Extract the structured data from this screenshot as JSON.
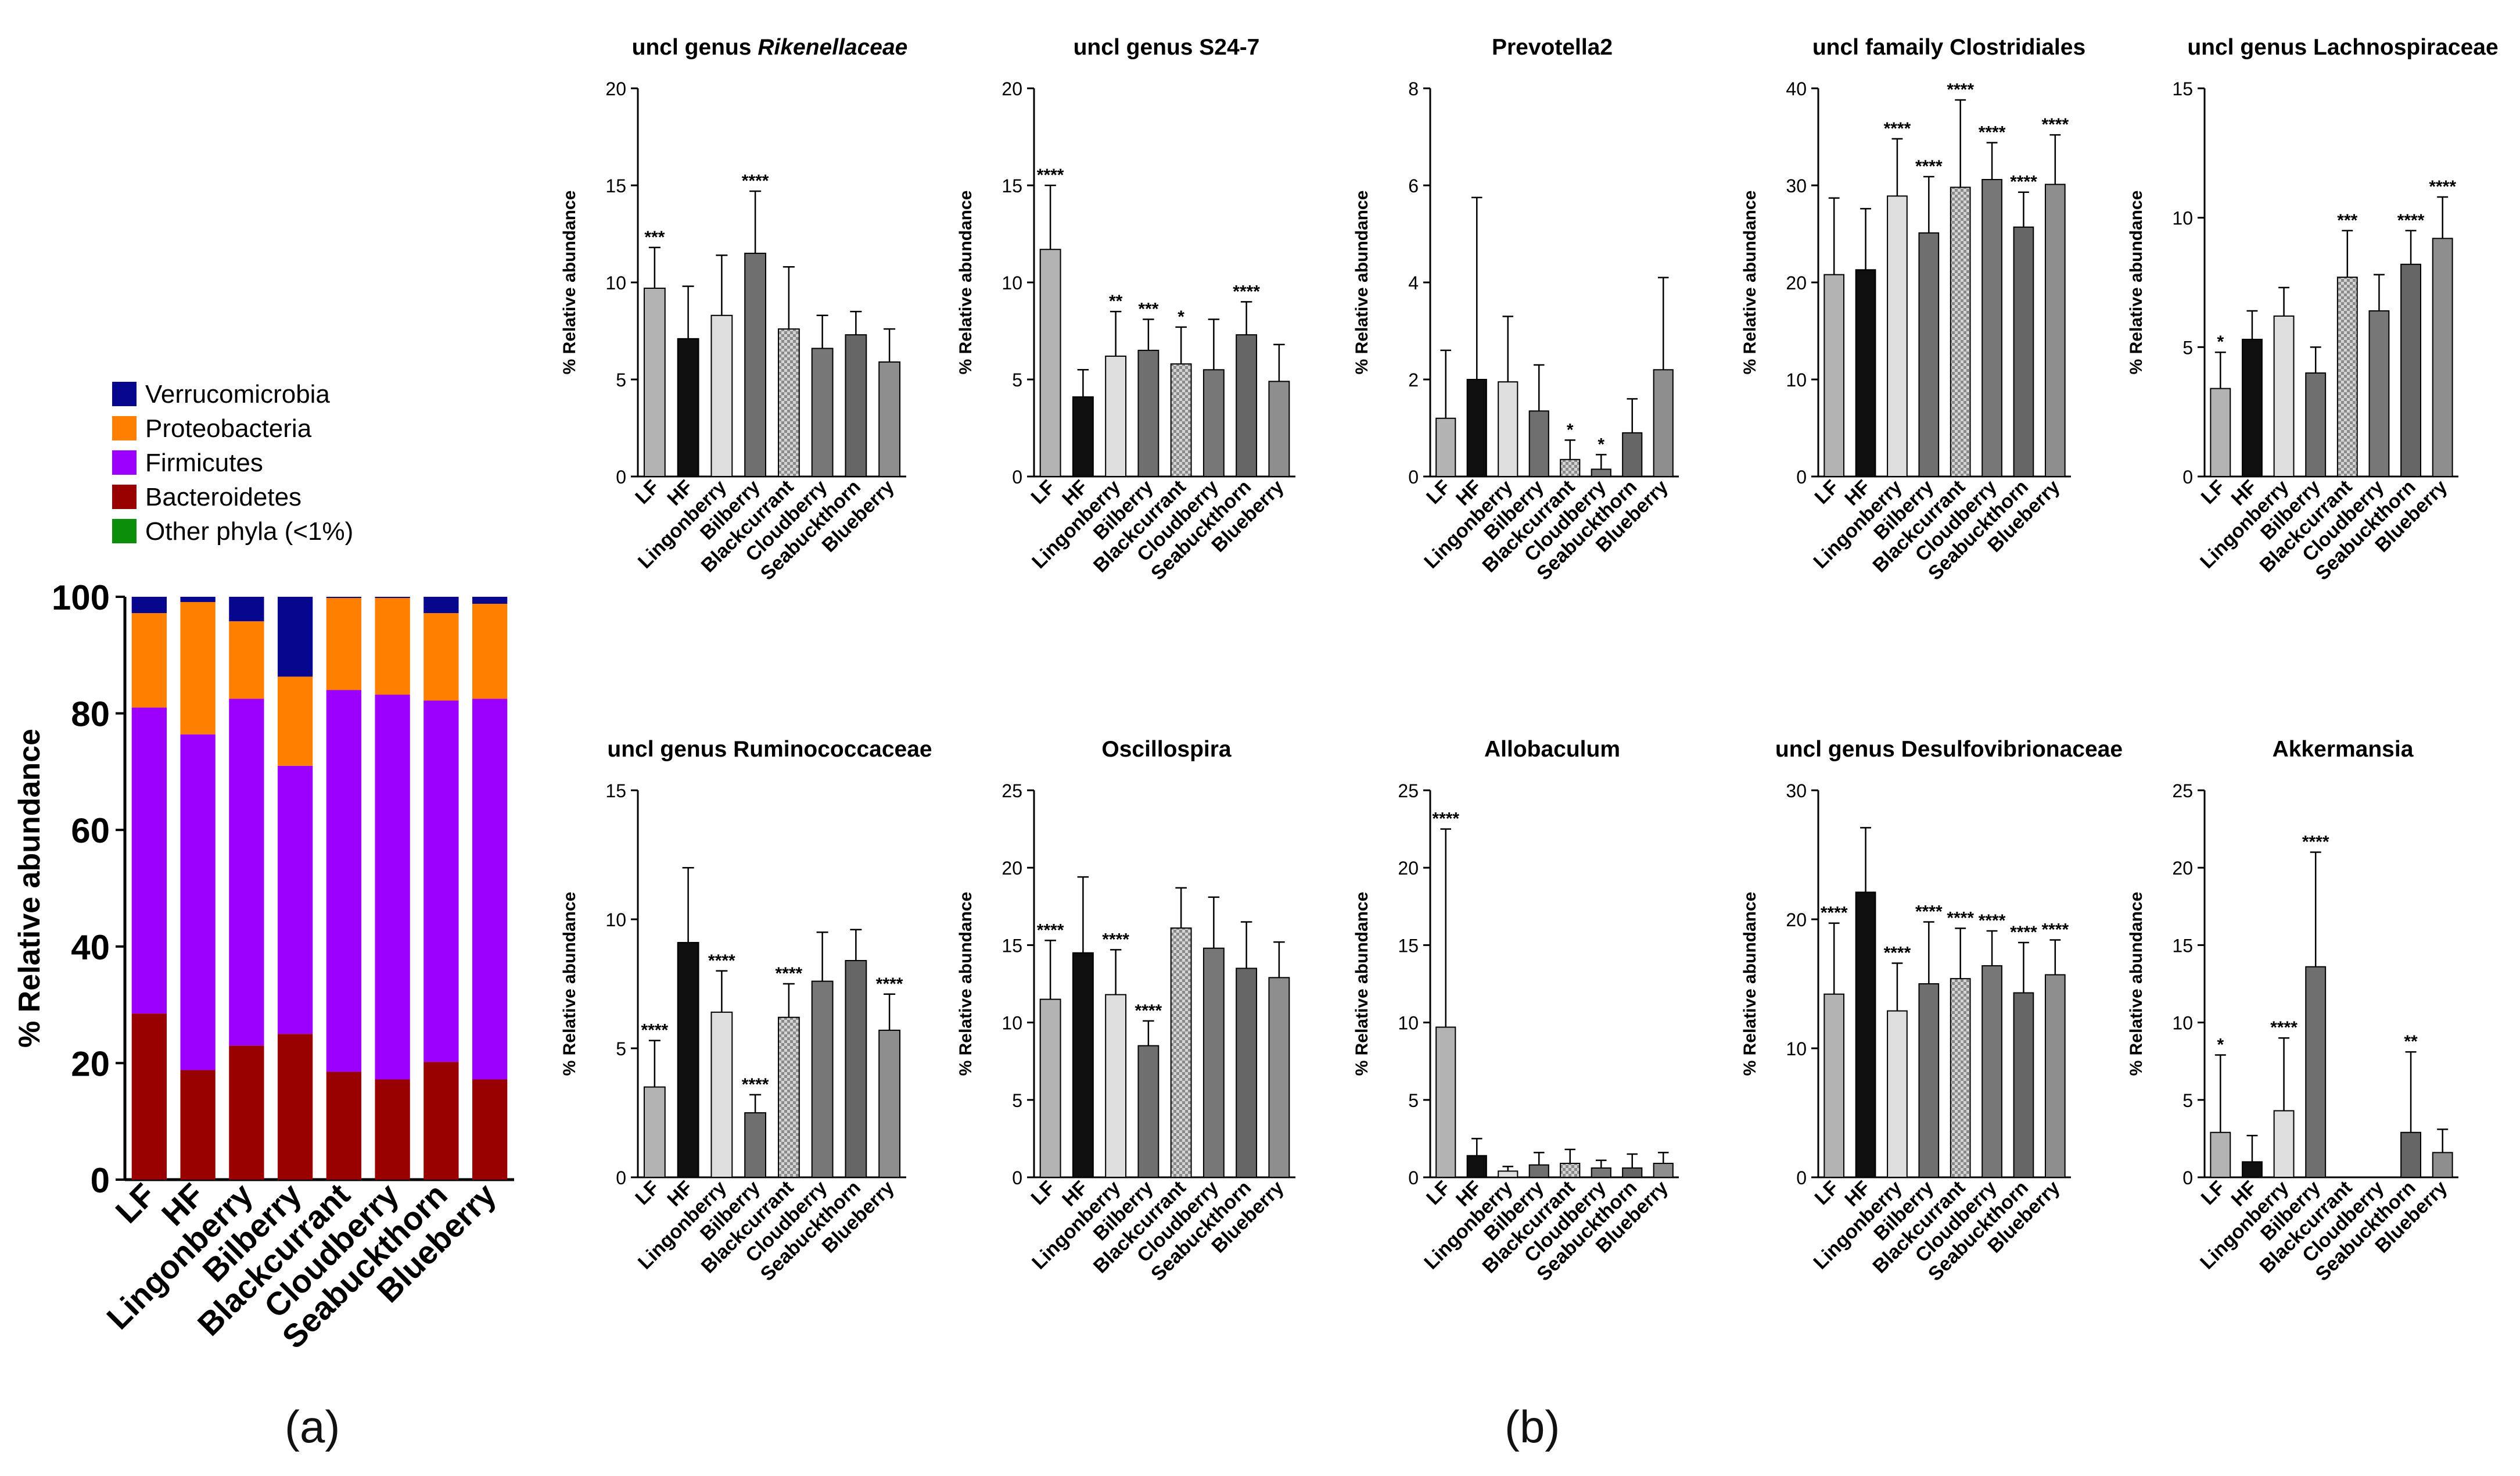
{
  "groups": [
    "LF",
    "HF",
    "Lingonberry",
    "Bilberry",
    "Blackcurrant",
    "Cloudberry",
    "Seabuckthorn",
    "Blueberry"
  ],
  "panel_a": {
    "label": "(a)",
    "ylabel": "% Relative abundance",
    "yticks": [
      "0",
      "20",
      "40",
      "60",
      "80",
      "100"
    ],
    "legend": [
      {
        "name": "Verrucomicrobia",
        "color": "#06068f"
      },
      {
        "name": "Proteobacteria",
        "color": "#ff7f00"
      },
      {
        "name": "Firmicutes",
        "color": "#9b00ff"
      },
      {
        "name": "Bacteroidetes",
        "color": "#990000"
      },
      {
        "name": "Other phyla (<1%)",
        "color": "#0b8f0b"
      }
    ]
  },
  "panel_b": {
    "label": "(b)",
    "ylabel": "% Relative abundance"
  },
  "chart_data": [
    {
      "type": "bar",
      "stacked": true,
      "title": "",
      "xlabel": "",
      "ylabel": "% Relative abundance",
      "ylim": [
        0,
        100
      ],
      "categories": [
        "LF",
        "HF",
        "Lingonberry",
        "Bilberry",
        "Blackcurrant",
        "Cloudberry",
        "Seabuckthorn",
        "Blueberry"
      ],
      "series": [
        {
          "name": "Bacteroidetes",
          "values": [
            28.5,
            18.8,
            23,
            25,
            18.5,
            17.2,
            20.2,
            17.2
          ]
        },
        {
          "name": "Firmicutes",
          "values": [
            52.5,
            57.6,
            59.5,
            46,
            65.5,
            66,
            62,
            65.3
          ]
        },
        {
          "name": "Proteobacteria",
          "values": [
            16.2,
            22.7,
            13.3,
            15.3,
            15.8,
            16.6,
            15,
            16.3
          ]
        },
        {
          "name": "Verrucomicrobia",
          "values": [
            2.8,
            0.9,
            4.2,
            13.7,
            0.2,
            0.2,
            2.8,
            1.2
          ]
        },
        {
          "name": "Other phyla (<1%)",
          "values": [
            0,
            0,
            0,
            0,
            0,
            0,
            0,
            0
          ]
        }
      ]
    },
    {
      "type": "bar",
      "title": "uncl genus ",
      "title_italic": "Rikenellaceae",
      "ylabel": "% Relative abundance",
      "ylim": [
        0,
        20
      ],
      "yticks": [
        0,
        5,
        10,
        15,
        20
      ],
      "categories": [
        "LF",
        "HF",
        "Lingonberry",
        "Bilberry",
        "Blackcurrant",
        "Cloudberry",
        "Seabuckthorn",
        "Blueberry"
      ],
      "values": [
        9.7,
        7.1,
        8.3,
        11.5,
        7.6,
        6.6,
        7.3,
        5.9
      ],
      "errors": [
        2.1,
        2.7,
        3.1,
        3.2,
        3.2,
        1.7,
        1.2,
        1.7
      ],
      "significance": [
        "***",
        "",
        "",
        "****",
        "",
        "",
        "",
        ""
      ]
    },
    {
      "type": "bar",
      "title": "uncl genus S24-7",
      "ylabel": "% Relative abundance",
      "ylim": [
        0,
        20
      ],
      "yticks": [
        0,
        5,
        10,
        15,
        20
      ],
      "categories": [
        "LF",
        "HF",
        "Lingonberry",
        "Bilberry",
        "Blackcurrant",
        "Cloudberry",
        "Seabuckthorn",
        "Blueberry"
      ],
      "values": [
        11.7,
        4.1,
        6.2,
        6.5,
        5.8,
        5.5,
        7.3,
        4.9
      ],
      "errors": [
        3.3,
        1.4,
        2.3,
        1.6,
        1.9,
        2.6,
        1.7,
        1.9
      ],
      "significance": [
        "****",
        "",
        "**",
        "***",
        "*",
        "",
        "****",
        ""
      ]
    },
    {
      "type": "bar",
      "title": "Prevotella2",
      "ylabel": "% Relative abundance",
      "ylim": [
        0,
        8
      ],
      "yticks": [
        0,
        2,
        4,
        6,
        8
      ],
      "categories": [
        "LF",
        "HF",
        "Lingonberry",
        "Bilberry",
        "Blackcurrant",
        "Cloudberry",
        "Seabuckthorn",
        "Blueberry"
      ],
      "values": [
        1.2,
        2.0,
        1.95,
        1.35,
        0.35,
        0.15,
        0.9,
        2.2
      ],
      "errors": [
        1.4,
        3.75,
        1.35,
        0.95,
        0.4,
        0.3,
        0.7,
        1.9
      ],
      "significance": [
        "",
        "",
        "",
        "",
        "*",
        "*",
        "",
        ""
      ]
    },
    {
      "type": "bar",
      "title": "uncl famaily Clostridiales",
      "ylabel": "% Relative abundance",
      "ylim": [
        0,
        40
      ],
      "yticks": [
        0,
        10,
        20,
        30,
        40
      ],
      "categories": [
        "LF",
        "HF",
        "Lingonberry",
        "Bilberry",
        "Blackcurrant",
        "Cloudberry",
        "Seabuckthorn",
        "Blueberry"
      ],
      "values": [
        20.8,
        21.3,
        28.9,
        25.1,
        29.8,
        30.6,
        25.7,
        30.1
      ],
      "errors": [
        7.9,
        6.3,
        5.9,
        5.8,
        9.0,
        3.8,
        3.6,
        5.1
      ],
      "significance": [
        "",
        "",
        "****",
        "****",
        "****",
        "****",
        "****",
        "****"
      ]
    },
    {
      "type": "bar",
      "title": "uncl genus Lachnospiraceae",
      "ylabel": "% Relative abundance",
      "ylim": [
        0,
        15
      ],
      "yticks": [
        0,
        5,
        10,
        15
      ],
      "categories": [
        "LF",
        "HF",
        "Lingonberry",
        "Bilberry",
        "Blackcurrant",
        "Cloudberry",
        "Seabuckthorn",
        "Blueberry"
      ],
      "values": [
        3.4,
        5.3,
        6.2,
        4.0,
        7.7,
        6.4,
        8.2,
        9.2
      ],
      "errors": [
        1.4,
        1.1,
        1.1,
        1.0,
        1.8,
        1.4,
        1.3,
        1.6
      ],
      "significance": [
        "*",
        "",
        "",
        "",
        "***",
        "",
        "****",
        "****"
      ]
    },
    {
      "type": "bar",
      "title": "uncl genus Ruminococcaceae",
      "ylabel": "% Relative abundance",
      "ylim": [
        0,
        15
      ],
      "yticks": [
        0,
        5,
        10,
        15
      ],
      "categories": [
        "LF",
        "HF",
        "Lingonberry",
        "Bilberry",
        "Blackcurrant",
        "Cloudberry",
        "Seabuckthorn",
        "Blueberry"
      ],
      "values": [
        3.5,
        9.1,
        6.4,
        2.5,
        6.2,
        7.6,
        8.4,
        5.7
      ],
      "errors": [
        1.8,
        2.9,
        1.6,
        0.7,
        1.3,
        1.9,
        1.2,
        1.4
      ],
      "significance": [
        "****",
        "",
        "****",
        "****",
        "****",
        "",
        "",
        "****"
      ]
    },
    {
      "type": "bar",
      "title": "Oscillospira",
      "ylabel": "% Relative abundance",
      "ylim": [
        0,
        25
      ],
      "yticks": [
        0,
        5,
        10,
        15,
        20,
        25
      ],
      "categories": [
        "LF",
        "HF",
        "Lingonberry",
        "Bilberry",
        "Blackcurrant",
        "Cloudberry",
        "Seabuckthorn",
        "Blueberry"
      ],
      "values": [
        11.5,
        14.5,
        11.8,
        8.5,
        16.1,
        14.8,
        13.5,
        12.9
      ],
      "errors": [
        3.8,
        4.9,
        2.9,
        1.6,
        2.6,
        3.3,
        3.0,
        2.3
      ],
      "significance": [
        "****",
        "",
        "****",
        "****",
        "",
        "",
        "",
        ""
      ]
    },
    {
      "type": "bar",
      "title": "Allobaculum",
      "ylabel": "% Relative abundance",
      "ylim": [
        0,
        25
      ],
      "yticks": [
        0,
        5,
        10,
        15,
        20,
        25
      ],
      "categories": [
        "LF",
        "HF",
        "Lingonberry",
        "Bilberry",
        "Blackcurrant",
        "Cloudberry",
        "Seabuckthorn",
        "Blueberry"
      ],
      "values": [
        9.7,
        1.4,
        0.4,
        0.8,
        0.9,
        0.6,
        0.6,
        0.9
      ],
      "errors": [
        12.8,
        1.1,
        0.3,
        0.8,
        0.9,
        0.5,
        0.9,
        0.7
      ],
      "significance": [
        "****",
        "",
        "",
        "",
        "",
        "",
        "",
        ""
      ]
    },
    {
      "type": "bar",
      "title": "uncl genus Desulfovibrionaceae",
      "ylabel": "% Relative abundance",
      "ylim": [
        0,
        30
      ],
      "yticks": [
        0,
        10,
        20,
        30
      ],
      "categories": [
        "LF",
        "HF",
        "Lingonberry",
        "Bilberry",
        "Blackcurrant",
        "Cloudberry",
        "Seabuckthorn",
        "Blueberry"
      ],
      "values": [
        14.2,
        22.1,
        12.9,
        15.0,
        15.4,
        16.4,
        14.3,
        15.7
      ],
      "errors": [
        5.5,
        5.0,
        3.7,
        4.8,
        3.9,
        2.7,
        3.9,
        2.7
      ],
      "significance": [
        "****",
        "",
        "****",
        "****",
        "****",
        "****",
        "****",
        "****"
      ]
    },
    {
      "type": "bar",
      "title": "Akkermansia",
      "ylabel": "% Relative abundance",
      "ylim": [
        0,
        25
      ],
      "yticks": [
        0,
        5,
        10,
        15,
        20,
        25
      ],
      "categories": [
        "LF",
        "HF",
        "Lingonberry",
        "Bilberry",
        "Blackcurrant",
        "Cloudberry",
        "Seabuckthorn",
        "Blueberry"
      ],
      "values": [
        2.9,
        1.0,
        4.3,
        13.6,
        0,
        0,
        2.9,
        1.6
      ],
      "errors": [
        5.0,
        1.7,
        4.7,
        7.4,
        0,
        0,
        5.2,
        1.5
      ],
      "significance": [
        "*",
        "",
        "****",
        "****",
        "",
        "",
        "**",
        ""
      ]
    }
  ]
}
